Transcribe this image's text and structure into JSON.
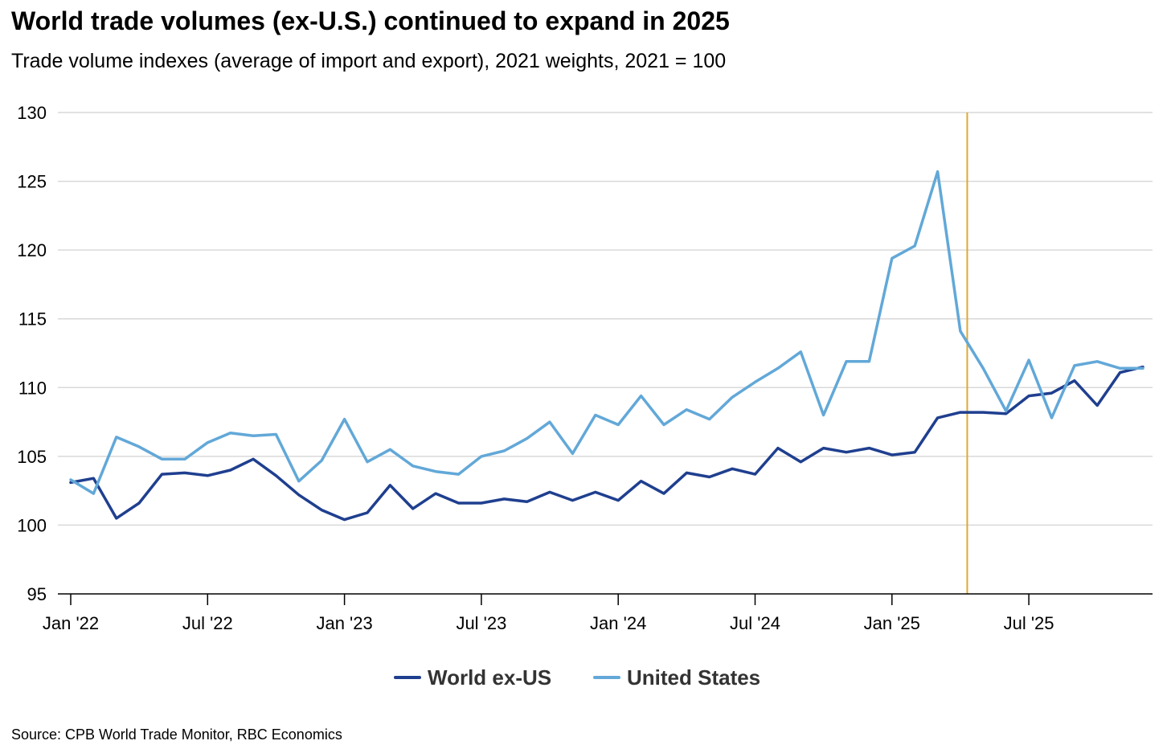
{
  "title": "World trade volumes (ex-U.S.) continued to expand in 2025",
  "subtitle": "Trade volume indexes (average of import and export), 2021 weights, 2021 = 100",
  "source": "Source: CPB World Trade Monitor, RBC Economics",
  "colors": {
    "world": "#1f3f8f",
    "us": "#62a8d8",
    "marker": "#e0a82e",
    "grid": "#d9d9d9",
    "axis": "#000000"
  },
  "chart_data": {
    "type": "line",
    "title": "World trade volumes (ex-U.S.) continued to expand in 2025",
    "xlabel": "",
    "ylabel": "",
    "ylim": [
      95,
      130
    ],
    "yticks": [
      95,
      100,
      105,
      110,
      115,
      120,
      125,
      130
    ],
    "grid": true,
    "legend_position": "bottom-center",
    "x_tick_labels": [
      "Jan '22",
      "Jul '22",
      "Jan '23",
      "Jul '23",
      "Jan '24",
      "Jul '24",
      "Jan '25",
      "Jul '25"
    ],
    "x_tick_index": [
      0,
      6,
      12,
      18,
      24,
      30,
      36,
      42
    ],
    "vertical_marker_index": 39.3,
    "x": [
      "Jan '22",
      "Feb '22",
      "Mar '22",
      "Apr '22",
      "May '22",
      "Jun '22",
      "Jul '22",
      "Aug '22",
      "Sep '22",
      "Oct '22",
      "Nov '22",
      "Dec '22",
      "Jan '23",
      "Feb '23",
      "Mar '23",
      "Apr '23",
      "May '23",
      "Jun '23",
      "Jul '23",
      "Aug '23",
      "Sep '23",
      "Oct '23",
      "Nov '23",
      "Dec '23",
      "Jan '24",
      "Feb '24",
      "Mar '24",
      "Apr '24",
      "May '24",
      "Jun '24",
      "Jul '24",
      "Aug '24",
      "Sep '24",
      "Oct '24",
      "Nov '24",
      "Dec '24",
      "Jan '25",
      "Feb '25",
      "Mar '25",
      "Apr '25",
      "May '25",
      "Jun '25",
      "Jul '25",
      "Aug '25",
      "Sep '25",
      "Oct '25",
      "Nov '25",
      "Dec '25"
    ],
    "series": [
      {
        "name": "World ex-US",
        "color": "#1f3f8f",
        "values": [
          103.1,
          103.4,
          100.5,
          101.6,
          103.7,
          103.8,
          103.6,
          104.0,
          104.8,
          103.6,
          102.2,
          101.1,
          100.4,
          100.9,
          102.9,
          101.2,
          102.3,
          101.6,
          101.6,
          101.9,
          101.7,
          102.4,
          101.8,
          102.4,
          101.8,
          103.2,
          102.3,
          103.8,
          103.5,
          104.1,
          103.7,
          105.6,
          104.6,
          105.6,
          105.3,
          105.6,
          105.1,
          105.3,
          107.8,
          108.2,
          108.2,
          108.1,
          109.4,
          109.6,
          110.5,
          108.7,
          111.1,
          111.5
        ]
      },
      {
        "name": "United States",
        "color": "#62a8d8",
        "values": [
          103.3,
          102.3,
          106.4,
          105.7,
          104.8,
          104.8,
          106.0,
          106.7,
          106.5,
          106.6,
          103.2,
          104.7,
          107.7,
          104.6,
          105.5,
          104.3,
          103.9,
          103.7,
          105.0,
          105.4,
          106.3,
          107.5,
          105.2,
          108.0,
          107.3,
          109.4,
          107.3,
          108.4,
          107.7,
          109.3,
          110.4,
          111.4,
          112.6,
          108.0,
          111.9,
          111.9,
          119.4,
          120.3,
          125.7,
          114.1,
          111.4,
          108.3,
          112.0,
          107.8,
          111.6,
          111.9,
          111.4,
          111.4
        ]
      }
    ]
  }
}
